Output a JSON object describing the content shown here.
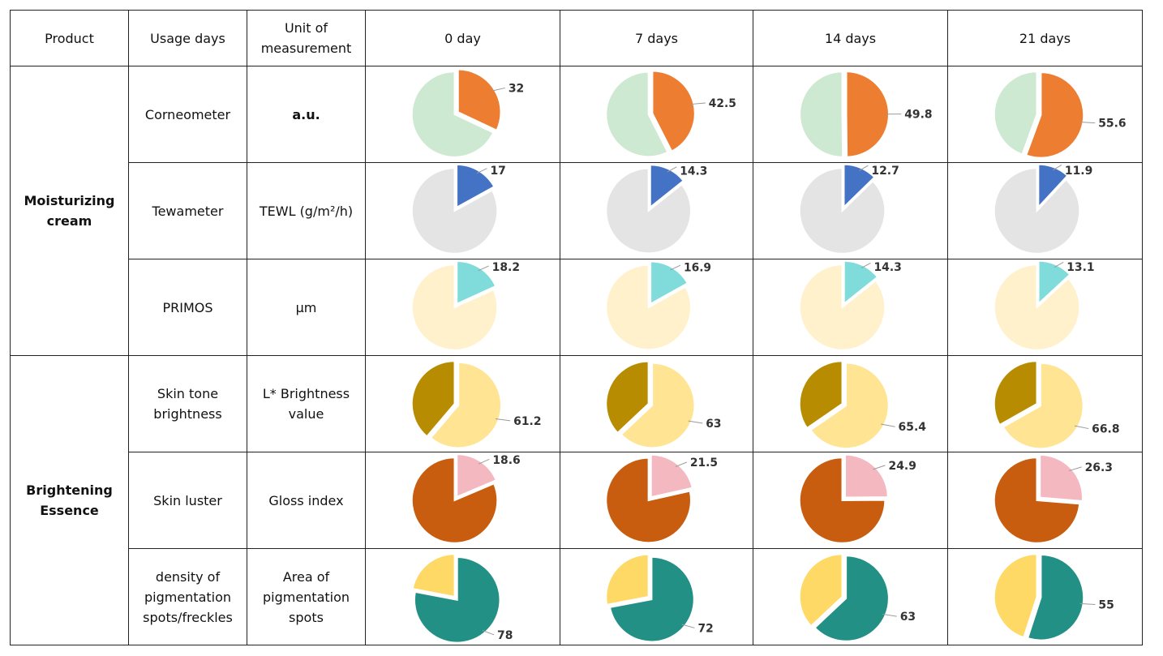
{
  "headers": {
    "product": "Product",
    "usage_days": "Usage days",
    "unit": "Unit of measurement",
    "days": [
      "0 day",
      "7 days",
      "14 days",
      "21 days"
    ]
  },
  "chart_data": {
    "type": "pie",
    "products": [
      {
        "name": "Moisturizing cream",
        "rows": [
          {
            "metric": "Corneometer",
            "unit": "a.u.",
            "values": [
              32,
              42.5,
              49.8,
              55.6
            ],
            "max": 100,
            "color": "#ED7D31",
            "rest_color": "#CDE9D1",
            "direction": "cw"
          },
          {
            "metric": "Tewameter",
            "unit": "TEWL (g/m²/h)",
            "values": [
              17,
              14.3,
              12.7,
              11.9
            ],
            "max": 100,
            "color": "#4472C4",
            "rest_color": "#E4E4E4",
            "direction": "cw"
          },
          {
            "metric": "PRIMOS",
            "unit": "μm",
            "values": [
              18.2,
              16.9,
              14.3,
              13.1
            ],
            "max": 100,
            "color": "#7FDCDA",
            "rest_color": "#FFF1CC",
            "direction": "cw"
          }
        ]
      },
      {
        "name": "Brightening Essence",
        "rows": [
          {
            "metric": "Skin tone brightness",
            "unit": "L* Brightness value",
            "values": [
              61.2,
              63,
              65.4,
              66.8
            ],
            "max": 100,
            "color": "#FFE494",
            "rest_color": "#B88C00",
            "direction": "cw"
          },
          {
            "metric": "Skin luster",
            "unit": "Gloss index",
            "values": [
              18.6,
              21.5,
              24.9,
              26.3
            ],
            "max": 100,
            "color": "#F4B8C0",
            "rest_color": "#C85D10",
            "direction": "cw"
          },
          {
            "metric": "density of pigmentation spots/freckles",
            "unit": "Area of pigmentation spots",
            "values": [
              78,
              72,
              63,
              55
            ],
            "max": 100,
            "color": "#239086",
            "rest_color": "#FFD966",
            "direction": "cw"
          }
        ]
      }
    ]
  }
}
